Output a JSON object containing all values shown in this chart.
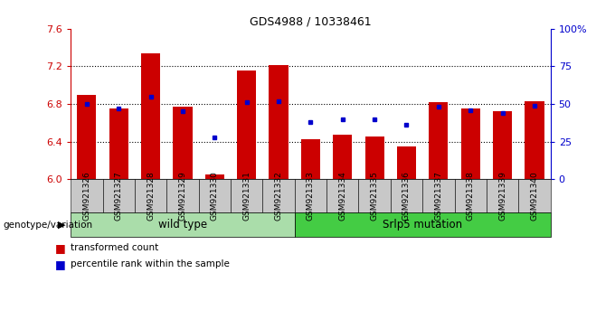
{
  "title": "GDS4988 / 10338461",
  "samples": [
    "GSM921326",
    "GSM921327",
    "GSM921328",
    "GSM921329",
    "GSM921330",
    "GSM921331",
    "GSM921332",
    "GSM921333",
    "GSM921334",
    "GSM921335",
    "GSM921336",
    "GSM921337",
    "GSM921338",
    "GSM921339",
    "GSM921340"
  ],
  "red_values": [
    6.9,
    6.75,
    7.34,
    6.77,
    6.05,
    7.16,
    7.21,
    6.43,
    6.47,
    6.45,
    6.35,
    6.82,
    6.75,
    6.72,
    6.83
  ],
  "blue_percentiles": [
    50,
    47,
    55,
    45,
    28,
    51,
    52,
    38,
    40,
    40,
    36,
    48,
    46,
    44,
    49
  ],
  "ymin": 6.0,
  "ymax": 7.6,
  "yticks": [
    6.0,
    6.4,
    6.8,
    7.2,
    7.6
  ],
  "grid_lines": [
    6.4,
    6.8,
    7.2
  ],
  "right_yticks": [
    0,
    25,
    50,
    75,
    100
  ],
  "right_ytick_labels": [
    "0",
    "25",
    "50",
    "75",
    "100%"
  ],
  "bar_color": "#cc0000",
  "blue_color": "#0000cc",
  "bar_bottom": 6.0,
  "group1_label": "wild type",
  "group2_label": "Srlp5 mutation",
  "group_label": "genotype/variation",
  "group1_color": "#aaddaa",
  "group2_color": "#44cc44",
  "legend_red": "transformed count",
  "legend_blue": "percentile rank within the sample",
  "bar_width": 0.6,
  "tick_label_color": "#cc0000",
  "right_tick_color": "#0000cc",
  "xlabel_gray_bg": "#c8c8c8",
  "wt_count": 7,
  "mut_count": 8
}
